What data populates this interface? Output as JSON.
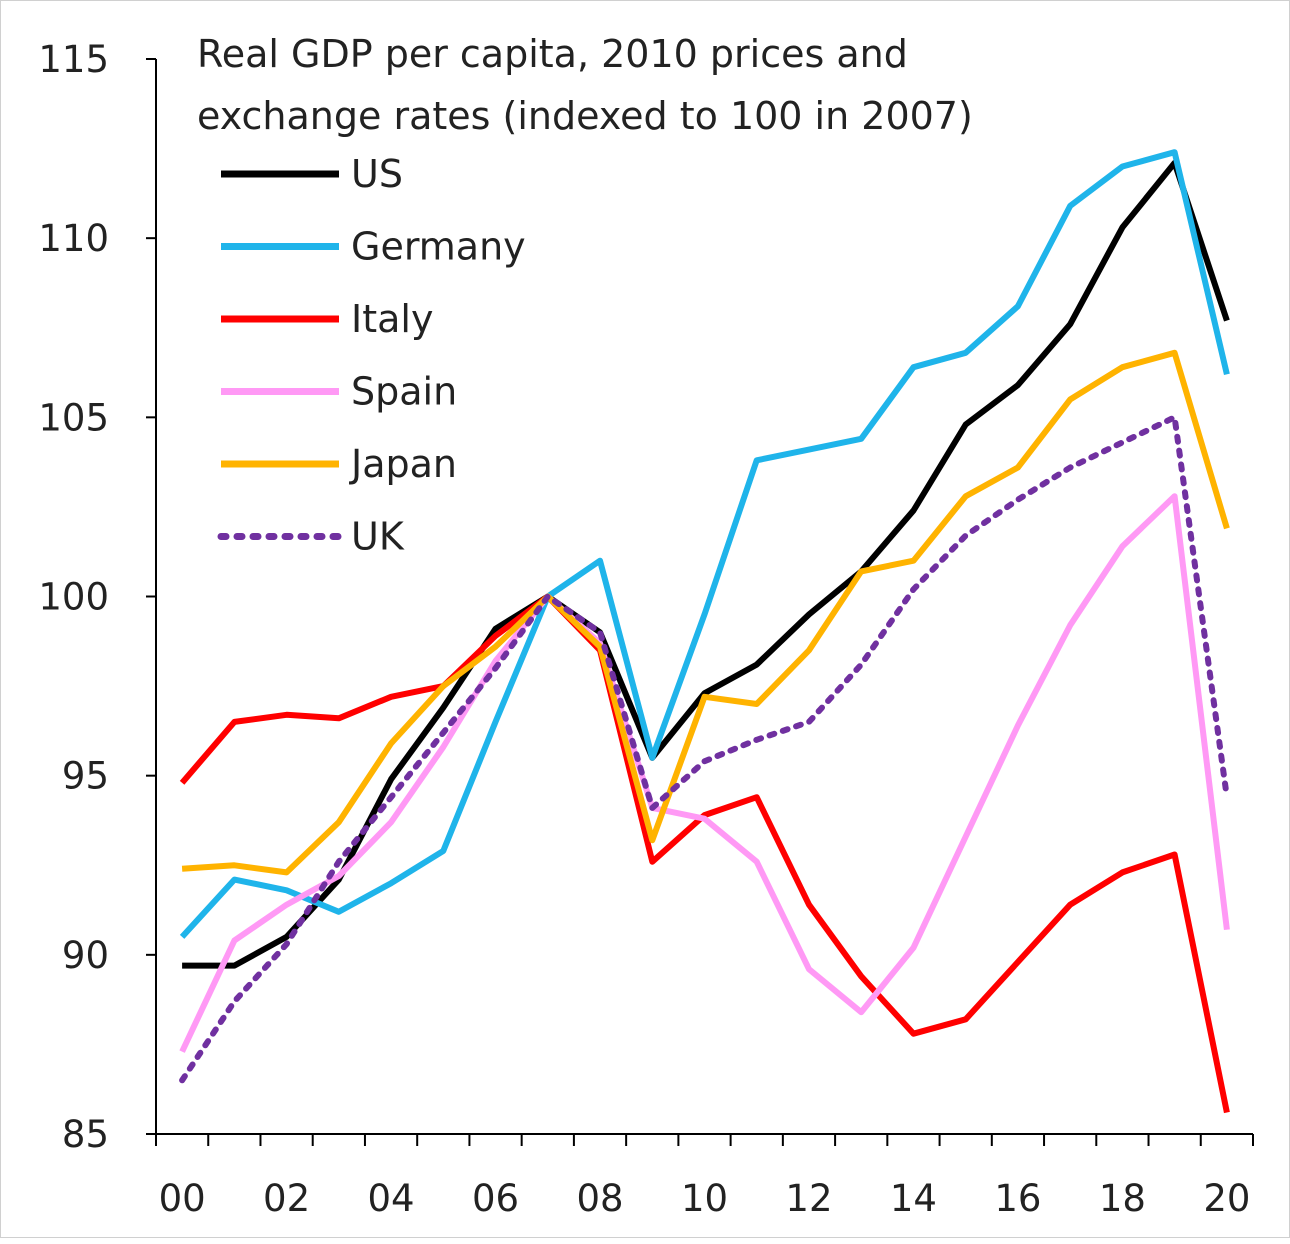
{
  "chart_data": {
    "type": "line",
    "title": "Real GDP per capita, 2010 prices and exchange rates (indexed to 100 in 2007)",
    "title_lines": [
      "Real GDP per capita, 2010  prices and",
      "exchange rates (indexed to 100 in 2007)"
    ],
    "xlabel": "",
    "ylabel": "",
    "ylim": [
      85,
      115
    ],
    "yticks": [
      85,
      90,
      95,
      100,
      105,
      110,
      115
    ],
    "x": [
      2000,
      2001,
      2002,
      2003,
      2004,
      2005,
      2006,
      2007,
      2008,
      2009,
      2010,
      2011,
      2012,
      2013,
      2014,
      2015,
      2016,
      2017,
      2018,
      2019,
      2020
    ],
    "xtick_labels": [
      "00",
      "02",
      "04",
      "06",
      "08",
      "10",
      "12",
      "14",
      "16",
      "18",
      "20"
    ],
    "grid": false,
    "legend_position": "top-left",
    "series": [
      {
        "name": "US",
        "color": "#000000",
        "dash": "solid",
        "values": [
          89.7,
          89.7,
          90.5,
          92.1,
          94.9,
          96.9,
          99.1,
          100,
          99.0,
          95.5,
          97.3,
          98.1,
          99.5,
          100.7,
          102.4,
          104.8,
          105.9,
          107.6,
          110.3,
          112.1,
          107.7
        ]
      },
      {
        "name": "Germany",
        "color": "#1fb4ea",
        "dash": "solid",
        "values": [
          90.5,
          92.1,
          91.8,
          91.2,
          92.0,
          92.9,
          96.5,
          100,
          101.0,
          95.5,
          99.5,
          103.8,
          104.1,
          104.4,
          106.4,
          106.8,
          108.1,
          110.9,
          112.0,
          112.4,
          106.2
        ]
      },
      {
        "name": "Italy",
        "color": "#ff0000",
        "dash": "solid",
        "values": [
          94.8,
          96.5,
          96.7,
          96.6,
          97.2,
          97.5,
          98.9,
          100,
          98.5,
          92.6,
          93.9,
          94.4,
          91.4,
          89.4,
          87.8,
          88.2,
          89.8,
          91.4,
          92.3,
          92.8,
          85.6
        ]
      },
      {
        "name": "Spain",
        "color": "#ff99f5",
        "dash": "solid",
        "values": [
          87.3,
          90.4,
          91.4,
          92.2,
          93.7,
          95.8,
          98.2,
          100,
          98.7,
          94.1,
          93.8,
          92.6,
          89.6,
          88.4,
          90.2,
          93.3,
          96.4,
          99.2,
          101.4,
          102.8,
          90.7
        ]
      },
      {
        "name": "Japan",
        "color": "#ffb300",
        "dash": "solid",
        "values": [
          92.4,
          92.5,
          92.3,
          93.7,
          95.9,
          97.5,
          98.6,
          100,
          98.6,
          93.2,
          97.2,
          97.0,
          98.5,
          100.7,
          101.0,
          102.8,
          103.6,
          105.5,
          106.4,
          106.8,
          101.9
        ]
      },
      {
        "name": "UK",
        "color": "#7030a0",
        "dash": "dotted",
        "values": [
          86.5,
          88.7,
          90.3,
          92.6,
          94.4,
          96.2,
          98.0,
          100,
          99.0,
          94.1,
          95.4,
          96.0,
          96.5,
          98.1,
          100.2,
          101.7,
          102.7,
          103.6,
          104.3,
          105.0,
          94.4
        ]
      }
    ]
  }
}
